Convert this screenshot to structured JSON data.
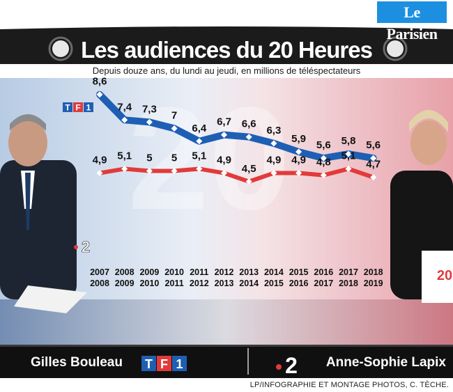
{
  "brand": {
    "name": "Le Parisien"
  },
  "header": {
    "title": "Les audiences du 20 Heures",
    "subtitle": "Depuis douze ans, du lundi au jeudi, en millions de téléspectateurs"
  },
  "footer": {
    "anchor_left": "Gilles Bouleau",
    "anchor_right": "Anne-Sophie Lapix",
    "credit": "LP/INFOGRAPHIE ET MONTAGE PHOTOS, C. TÈCHE."
  },
  "channels": {
    "tf1": "TF1",
    "f2": "2"
  },
  "colors": {
    "tf1": "#1e5fb4",
    "f2": "#e23a3a",
    "header": "#1b1b1b",
    "footer": "#101010"
  },
  "chart_data": {
    "type": "line",
    "title": "Les audiences du 20 Heures",
    "subtitle": "Depuis douze ans, du lundi au jeudi, en millions de téléspectateurs",
    "categories": [
      [
        "2007",
        "2008"
      ],
      [
        "2008",
        "2009"
      ],
      [
        "2009",
        "2010"
      ],
      [
        "2010",
        "2011"
      ],
      [
        "2011",
        "2012"
      ],
      [
        "2012",
        "2013"
      ],
      [
        "2013",
        "2014"
      ],
      [
        "2014",
        "2015"
      ],
      [
        "2015",
        "2016"
      ],
      [
        "2016",
        "2017"
      ],
      [
        "2017",
        "2018"
      ],
      [
        "2018",
        "2019"
      ]
    ],
    "series": [
      {
        "name": "TF1",
        "values": [
          8.6,
          7.4,
          7.3,
          7.0,
          6.4,
          6.7,
          6.6,
          6.3,
          5.9,
          5.6,
          5.8,
          5.6
        ],
        "labels": [
          "8,6",
          "7,4",
          "7,3",
          "7",
          "6,4",
          "6,7",
          "6,6",
          "6,3",
          "5,9",
          "5,6",
          "5,8",
          "5,6"
        ]
      },
      {
        "name": "2",
        "values": [
          4.9,
          5.1,
          5.0,
          5.0,
          5.1,
          4.9,
          4.5,
          4.9,
          4.9,
          4.8,
          5.1,
          4.7
        ],
        "labels": [
          "4,9",
          "5,1",
          "5",
          "5",
          "5,1",
          "4,9",
          "4,5",
          "4,9",
          "4,9",
          "4,8",
          "5,1",
          "4,7"
        ]
      }
    ],
    "grid": false,
    "legend": "none"
  }
}
